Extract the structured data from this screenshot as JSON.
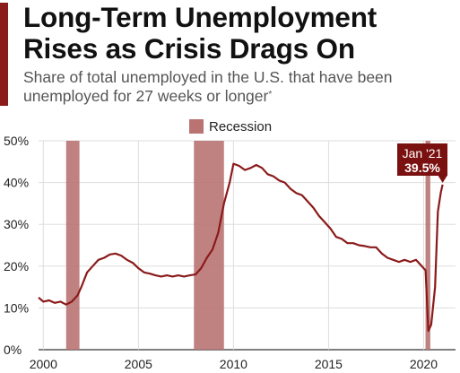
{
  "title": "Long-Term Unemployment Rises as Crisis Drags On",
  "subtitle": "Share of total unemployed in the U.S. that have been unemployed for 27 weeks or longer",
  "subtitle_marker": "*",
  "colors": {
    "line": "#8b1a1a",
    "recession": "#b97373",
    "accent": "#8b1a1a",
    "annotation_bg": "#7a1010"
  },
  "chart_data": {
    "type": "line",
    "title": "Long-Term Unemployment Rises as Crisis Drags On",
    "ylabel": "",
    "xlabel": "",
    "xlim": [
      1999.75,
      2021.3
    ],
    "ylim": [
      0,
      50
    ],
    "y_ticks": [
      0,
      10,
      20,
      30,
      40,
      50
    ],
    "y_tick_labels": [
      "0%",
      "10%",
      "20%",
      "30%",
      "40%",
      "50%"
    ],
    "x_ticks": [
      2000,
      2005,
      2010,
      2015,
      2020
    ],
    "x_tick_labels": [
      "2000",
      "2005",
      "2010",
      "2015",
      "2020"
    ],
    "grid": true,
    "legend": {
      "position": "top-center",
      "entries": [
        {
          "label": "Recession",
          "color": "#b97373"
        }
      ]
    },
    "recessions": [
      {
        "start": 2001.2,
        "end": 2001.9
      },
      {
        "start": 2007.92,
        "end": 2009.5
      },
      {
        "start": 2020.1,
        "end": 2020.35
      }
    ],
    "annotation": {
      "x": 2021.0,
      "y": 39.5,
      "label": "Jan '21",
      "value_label": "39.5%"
    },
    "series": [
      {
        "values_x": [
          1999.75,
          2000.0,
          2000.3,
          2000.6,
          2000.9,
          2001.2,
          2001.5,
          2001.8,
          2002.0,
          2002.3,
          2002.6,
          2002.9,
          2003.2,
          2003.5,
          2003.8,
          2004.1,
          2004.4,
          2004.7,
          2005.0,
          2005.3,
          2005.6,
          2005.9,
          2006.2,
          2006.5,
          2006.8,
          2007.1,
          2007.4,
          2007.7,
          2008.0,
          2008.3,
          2008.6,
          2008.9,
          2009.2,
          2009.5,
          2009.8,
          2010.0,
          2010.3,
          2010.6,
          2010.9,
          2011.2,
          2011.5,
          2011.8,
          2012.1,
          2012.4,
          2012.7,
          2013.0,
          2013.3,
          2013.6,
          2013.9,
          2014.2,
          2014.5,
          2014.8,
          2015.1,
          2015.4,
          2015.7,
          2016.0,
          2016.3,
          2016.6,
          2016.9,
          2017.2,
          2017.5,
          2017.8,
          2018.1,
          2018.4,
          2018.7,
          2019.0,
          2019.3,
          2019.6,
          2019.9,
          2020.1,
          2020.25,
          2020.4,
          2020.6,
          2020.75,
          2020.9,
          2021.0
        ],
        "values": [
          12.5,
          11.5,
          11.8,
          11.2,
          11.5,
          10.8,
          11.5,
          13.0,
          15.0,
          18.5,
          20.0,
          21.5,
          22.0,
          22.8,
          23.0,
          22.5,
          21.5,
          20.8,
          19.5,
          18.5,
          18.2,
          17.8,
          17.5,
          17.8,
          17.5,
          17.8,
          17.5,
          17.8,
          18.0,
          19.5,
          22.0,
          24.0,
          28.0,
          35.0,
          40.0,
          44.5,
          44.0,
          43.0,
          43.5,
          44.2,
          43.5,
          42.0,
          41.5,
          40.5,
          40.0,
          38.5,
          37.5,
          37.0,
          35.5,
          34.0,
          32.0,
          30.5,
          29.0,
          27.0,
          26.5,
          25.5,
          25.5,
          25.0,
          24.8,
          24.5,
          24.5,
          23.0,
          22.0,
          21.5,
          21.0,
          21.5,
          21.0,
          21.5,
          20.0,
          19.0,
          4.5,
          6.0,
          15.0,
          33.0,
          37.5,
          39.5
        ]
      }
    ]
  }
}
